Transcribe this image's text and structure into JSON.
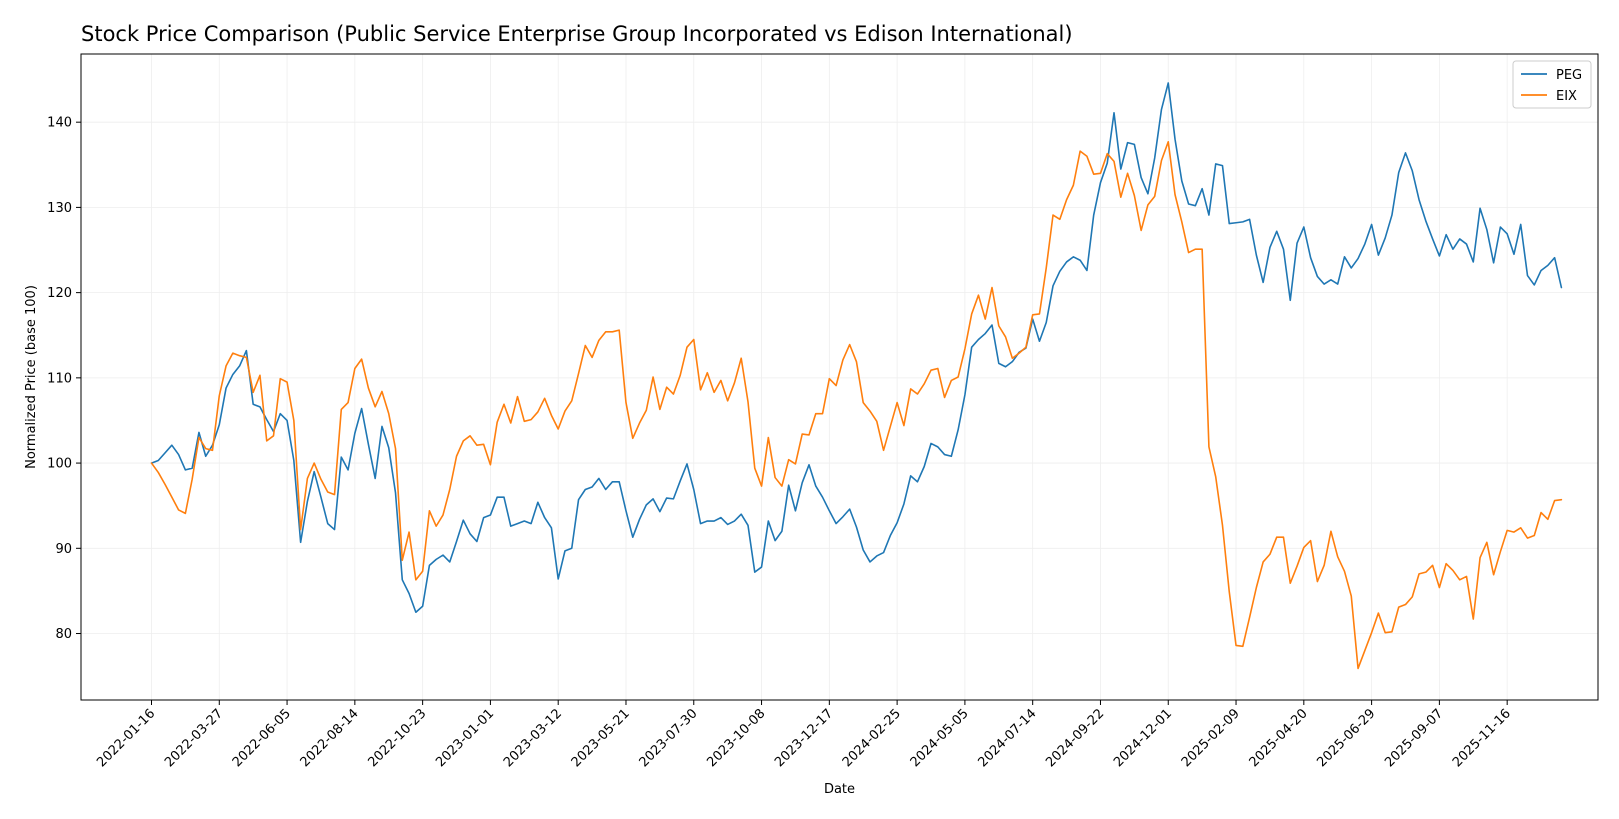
{
  "chart_data": {
    "type": "line",
    "title": "Stock Price Comparison (Public Service Enterprise Group Incorporated vs Edison International)",
    "xlabel": "Date",
    "ylabel": "Normalized Price (base 100)",
    "ylim": [
      72.2,
      148.0
    ],
    "yticks": [
      80,
      90,
      100,
      110,
      120,
      130,
      140
    ],
    "xlim_weeks": [
      -10.4,
      213.4
    ],
    "xticks": [
      {
        "label": "2022-01-16",
        "week": 0
      },
      {
        "label": "2022-03-27",
        "week": 10
      },
      {
        "label": "2022-06-05",
        "week": 20
      },
      {
        "label": "2022-08-14",
        "week": 30
      },
      {
        "label": "2022-10-23",
        "week": 40
      },
      {
        "label": "2023-01-01",
        "week": 50
      },
      {
        "label": "2023-03-12",
        "week": 60
      },
      {
        "label": "2023-05-21",
        "week": 70
      },
      {
        "label": "2023-07-30",
        "week": 80
      },
      {
        "label": "2023-10-08",
        "week": 90
      },
      {
        "label": "2023-12-17",
        "week": 100
      },
      {
        "label": "2024-02-25",
        "week": 110
      },
      {
        "label": "2024-05-05",
        "week": 120
      },
      {
        "label": "2024-07-14",
        "week": 130
      },
      {
        "label": "2024-09-22",
        "week": 140
      },
      {
        "label": "2024-12-01",
        "week": 150
      },
      {
        "label": "2025-02-09",
        "week": 160
      },
      {
        "label": "2025-04-20",
        "week": 170
      },
      {
        "label": "2025-06-29",
        "week": 180
      },
      {
        "label": "2025-09-07",
        "week": 190
      },
      {
        "label": "2025-11-16",
        "week": 200
      }
    ],
    "grid": true,
    "legend_position": "top-right",
    "colors": {
      "PEG": "#1f77b4",
      "EIX": "#ff7f0e",
      "axes": "#000000",
      "grid": "#eeeeee"
    },
    "series": [
      {
        "name": "PEG",
        "x_weeks_step": 1,
        "values": [
          100.0,
          100.3,
          101.2,
          102.1,
          101.0,
          99.2,
          99.4,
          103.6,
          100.8,
          102.1,
          104.5,
          108.8,
          110.4,
          111.4,
          113.2,
          106.9,
          106.6,
          105.1,
          103.7,
          105.8,
          105.0,
          100.3,
          90.7,
          95.5,
          99.0,
          96.0,
          92.9,
          92.2,
          100.7,
          99.2,
          103.5,
          106.4,
          102.2,
          98.2,
          104.3,
          101.8,
          96.5,
          86.3,
          84.7,
          82.5,
          83.2,
          88.0,
          88.7,
          89.2,
          88.4,
          90.8,
          93.3,
          91.7,
          90.8,
          93.6,
          93.9,
          96.0,
          96.0,
          92.6,
          92.9,
          93.2,
          92.9,
          95.4,
          93.6,
          92.4,
          86.4,
          89.7,
          90.0,
          95.7,
          96.9,
          97.2,
          98.2,
          96.9,
          97.8,
          97.8,
          94.4,
          91.3,
          93.4,
          95.1,
          95.8,
          94.3,
          95.9,
          95.8,
          97.9,
          99.9,
          96.9,
          92.9,
          93.2,
          93.2,
          93.6,
          92.8,
          93.2,
          94.0,
          92.7,
          87.2,
          87.8,
          93.2,
          90.9,
          92.0,
          97.4,
          94.4,
          97.7,
          99.8,
          97.3,
          96.0,
          94.4,
          92.9,
          93.7,
          94.6,
          92.5,
          89.8,
          88.4,
          89.1,
          89.5,
          91.5,
          93.0,
          95.2,
          98.5,
          97.8,
          99.6,
          102.3,
          101.9,
          101.0,
          100.8,
          103.9,
          108.0,
          113.6,
          114.5,
          115.2,
          116.2,
          111.7,
          111.3,
          111.9,
          113.0,
          113.5,
          116.9,
          114.3,
          116.5,
          120.8,
          122.5,
          123.6,
          124.2,
          123.8,
          122.6,
          129.1,
          132.9,
          135.2,
          141.1,
          134.5,
          137.6,
          137.4,
          133.5,
          131.6,
          135.8,
          141.5,
          144.6,
          138.0,
          133.1,
          130.4,
          130.2,
          132.2,
          129.1,
          135.1,
          134.9,
          128.1,
          128.2,
          128.3,
          128.6,
          124.4,
          121.2,
          125.3,
          127.2,
          125.1,
          119.1,
          125.8,
          127.7,
          124.1,
          121.9,
          121.0,
          121.5,
          121.0,
          124.2,
          122.9,
          124.0,
          125.7,
          128.0,
          124.4,
          126.4,
          129.1,
          134.1,
          136.4,
          134.3,
          130.9,
          128.4,
          126.3,
          124.3,
          126.8,
          125.1,
          126.3,
          125.7,
          123.6,
          129.9,
          127.4,
          123.5,
          127.7,
          126.9,
          124.5,
          128.0,
          122.0,
          120.9,
          122.6,
          123.2,
          124.1,
          120.6
        ]
      },
      {
        "name": "EIX",
        "x_weeks_step": 1,
        "values": [
          100.0,
          98.9,
          97.5,
          96.0,
          94.5,
          94.1,
          98.1,
          103.0,
          101.7,
          101.5,
          107.9,
          111.4,
          112.9,
          112.6,
          112.4,
          108.3,
          110.3,
          102.6,
          103.2,
          109.9,
          109.5,
          105.0,
          92.2,
          98.2,
          100.0,
          98.1,
          96.6,
          96.3,
          106.3,
          107.1,
          111.1,
          112.2,
          108.8,
          106.6,
          108.4,
          105.8,
          101.7,
          88.6,
          91.9,
          86.3,
          87.3,
          94.4,
          92.6,
          93.9,
          96.9,
          100.8,
          102.6,
          103.2,
          102.1,
          102.2,
          99.8,
          104.8,
          106.9,
          104.7,
          107.8,
          104.9,
          105.1,
          106.0,
          107.6,
          105.6,
          104.0,
          106.1,
          107.3,
          110.5,
          113.8,
          112.4,
          114.4,
          115.4,
          115.4,
          115.6,
          107.1,
          102.9,
          104.7,
          106.2,
          110.1,
          106.3,
          108.9,
          108.1,
          110.3,
          113.6,
          114.5,
          108.6,
          110.6,
          108.3,
          109.7,
          107.3,
          109.4,
          112.3,
          107.2,
          99.4,
          97.3,
          103.0,
          98.3,
          97.3,
          100.4,
          99.9,
          103.4,
          103.3,
          105.8,
          105.8,
          109.9,
          109.1,
          112.1,
          113.9,
          111.9,
          107.1,
          106.1,
          104.9,
          101.5,
          104.3,
          107.1,
          104.4,
          108.7,
          108.1,
          109.3,
          110.9,
          111.1,
          107.7,
          109.7,
          110.1,
          113.4,
          117.5,
          119.7,
          116.9,
          120.6,
          116.1,
          114.8,
          112.3,
          112.9,
          113.6,
          117.4,
          117.5,
          122.9,
          129.1,
          128.6,
          130.9,
          132.6,
          136.6,
          136.0,
          133.9,
          134.0,
          136.3,
          135.4,
          131.2,
          134.0,
          131.4,
          127.3,
          130.3,
          131.3,
          135.5,
          137.7,
          131.5,
          128.3,
          124.7,
          125.1,
          125.1,
          101.9,
          98.4,
          92.7,
          84.9,
          78.6,
          78.5,
          81.9,
          85.4,
          88.4,
          89.3,
          91.3,
          91.3,
          85.9,
          87.9,
          90.1,
          90.9,
          86.1,
          88.0,
          92.0,
          89.0,
          87.3,
          84.4,
          75.9,
          78.0,
          80.1,
          82.4,
          80.1,
          80.2,
          83.1,
          83.4,
          84.3,
          87.0,
          87.2,
          88.0,
          85.4,
          88.2,
          87.4,
          86.3,
          86.7,
          81.7,
          88.9,
          90.7,
          86.9,
          89.6,
          92.1,
          91.9,
          92.4,
          91.2,
          91.5,
          94.2,
          93.4,
          95.6,
          95.7
        ]
      }
    ]
  }
}
